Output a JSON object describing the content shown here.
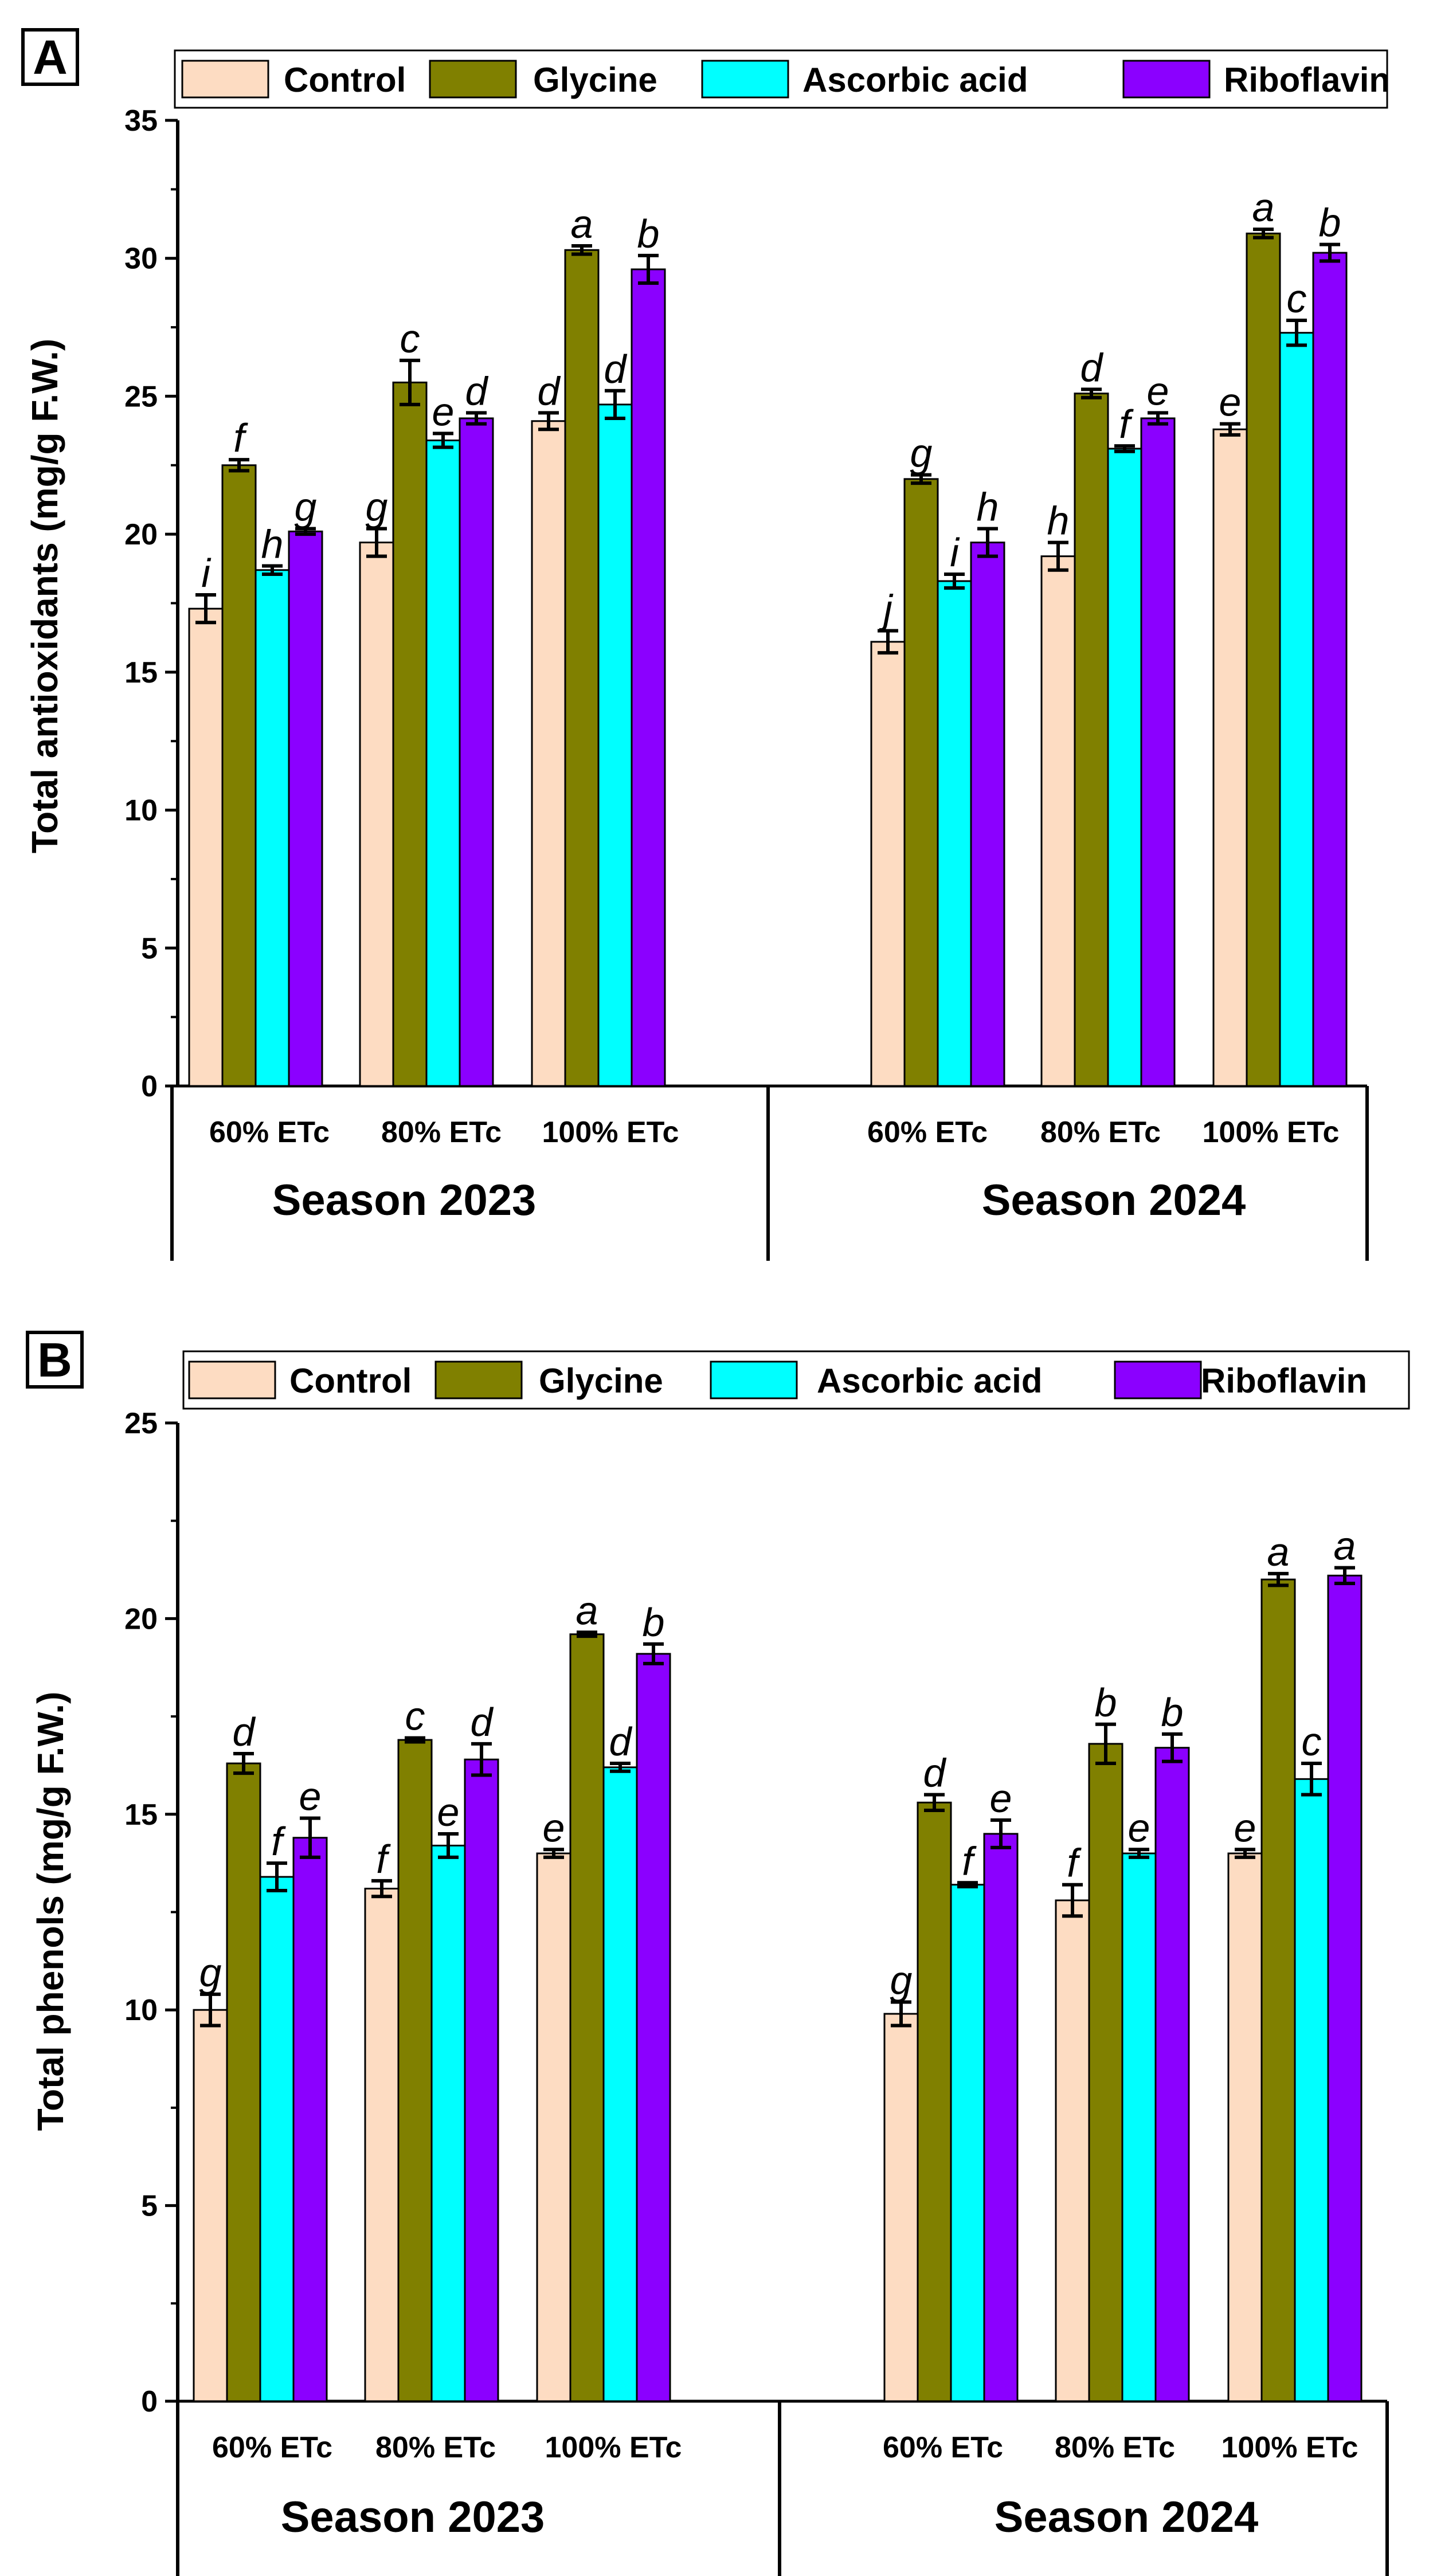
{
  "colors": {
    "Control": "#FDDCC2",
    "Glycine": "#808000",
    "Ascorbic acid": "#00FFFF",
    "Riboflavin": "#8B00FF"
  },
  "chart_data": [
    {
      "type": "bar",
      "panel_label": "A",
      "ylabel": "Total antioxidants (mg/g F.W.)",
      "ylim": [
        0,
        35
      ],
      "yticks": [
        "0",
        "5",
        "10",
        "15",
        "20",
        "25",
        "30",
        "35"
      ],
      "legend": [
        "Control",
        "Glycine",
        "Ascorbic acid",
        "Riboflavin"
      ],
      "groups": [
        {
          "season": "Season 2023",
          "categories": [
            "60% ETc",
            "80% ETc",
            "100% ETc"
          ],
          "series": [
            {
              "name": "Control",
              "values": [
                17.3,
                19.7,
                24.1
              ],
              "errors": [
                0.5,
                0.5,
                0.3
              ],
              "letters": [
                "i",
                "g",
                "d"
              ]
            },
            {
              "name": "Glycine",
              "values": [
                22.5,
                25.5,
                30.3
              ],
              "errors": [
                0.2,
                0.8,
                0.15
              ],
              "letters": [
                "f",
                "c",
                "a"
              ]
            },
            {
              "name": "Ascorbic acid",
              "values": [
                18.7,
                23.4,
                24.7
              ],
              "errors": [
                0.15,
                0.25,
                0.5
              ],
              "letters": [
                "h",
                "e",
                "d"
              ]
            },
            {
              "name": "Riboflavin",
              "values": [
                20.1,
                24.2,
                29.6
              ],
              "errors": [
                0.1,
                0.2,
                0.5
              ],
              "letters": [
                "g",
                "d",
                "b"
              ]
            }
          ]
        },
        {
          "season": "Season 2024",
          "categories": [
            "60% ETc",
            "80% ETc",
            "100% ETc"
          ],
          "series": [
            {
              "name": "Control",
              "values": [
                16.1,
                19.2,
                23.8
              ],
              "errors": [
                0.4,
                0.5,
                0.2
              ],
              "letters": [
                "j",
                "h",
                "e"
              ]
            },
            {
              "name": "Glycine",
              "values": [
                22.0,
                25.1,
                30.9
              ],
              "errors": [
                0.15,
                0.15,
                0.15
              ],
              "letters": [
                "g",
                "d",
                "a"
              ]
            },
            {
              "name": "Ascorbic acid",
              "values": [
                18.3,
                23.1,
                27.3
              ],
              "errors": [
                0.25,
                0.1,
                0.45
              ],
              "letters": [
                "i",
                "f",
                "c"
              ]
            },
            {
              "name": "Riboflavin",
              "values": [
                19.7,
                24.2,
                30.2
              ],
              "errors": [
                0.5,
                0.2,
                0.3
              ],
              "letters": [
                "h",
                "e",
                "b"
              ]
            }
          ]
        }
      ]
    },
    {
      "type": "bar",
      "panel_label": "B",
      "ylabel": "Total phenols (mg/g F.W.)",
      "ylim": [
        0,
        25
      ],
      "yticks": [
        "0",
        "5",
        "10",
        "15",
        "20",
        "25"
      ],
      "legend": [
        "Control",
        "Glycine",
        "Ascorbic acid",
        "Riboflavin"
      ],
      "groups": [
        {
          "season": "Season 2023",
          "categories": [
            "60% ETc",
            "80% ETc",
            "100% ETc"
          ],
          "series": [
            {
              "name": "Control",
              "values": [
                10.0,
                13.1,
                14.0
              ],
              "errors": [
                0.4,
                0.2,
                0.1
              ],
              "letters": [
                "g",
                "f",
                "e"
              ]
            },
            {
              "name": "Glycine",
              "values": [
                16.3,
                16.9,
                19.6
              ],
              "errors": [
                0.25,
                0.05,
                0.05
              ],
              "letters": [
                "d",
                "c",
                "a"
              ]
            },
            {
              "name": "Ascorbic acid",
              "values": [
                13.4,
                14.2,
                16.2
              ],
              "errors": [
                0.35,
                0.3,
                0.1
              ],
              "letters": [
                "f",
                "e",
                "d"
              ]
            },
            {
              "name": "Riboflavin",
              "values": [
                14.4,
                16.4,
                19.1
              ],
              "errors": [
                0.5,
                0.4,
                0.25
              ],
              "letters": [
                "e",
                "d",
                "b"
              ]
            }
          ]
        },
        {
          "season": "Season 2024",
          "categories": [
            "60% ETc",
            "80% ETc",
            "100% ETc"
          ],
          "series": [
            {
              "name": "Control",
              "values": [
                9.9,
                12.8,
                14.0
              ],
              "errors": [
                0.3,
                0.4,
                0.1
              ],
              "letters": [
                "g",
                "f",
                "e"
              ]
            },
            {
              "name": "Glycine",
              "values": [
                15.3,
                16.8,
                21.0
              ],
              "errors": [
                0.2,
                0.5,
                0.15
              ],
              "letters": [
                "d",
                "b",
                "a"
              ]
            },
            {
              "name": "Ascorbic acid",
              "values": [
                13.2,
                14.0,
                15.9
              ],
              "errors": [
                0.05,
                0.1,
                0.4
              ],
              "letters": [
                "f",
                "e",
                "c"
              ]
            },
            {
              "name": "Riboflavin",
              "values": [
                14.5,
                16.7,
                21.1
              ],
              "errors": [
                0.35,
                0.35,
                0.2
              ],
              "letters": [
                "e",
                "b",
                "a"
              ]
            }
          ]
        }
      ]
    }
  ]
}
